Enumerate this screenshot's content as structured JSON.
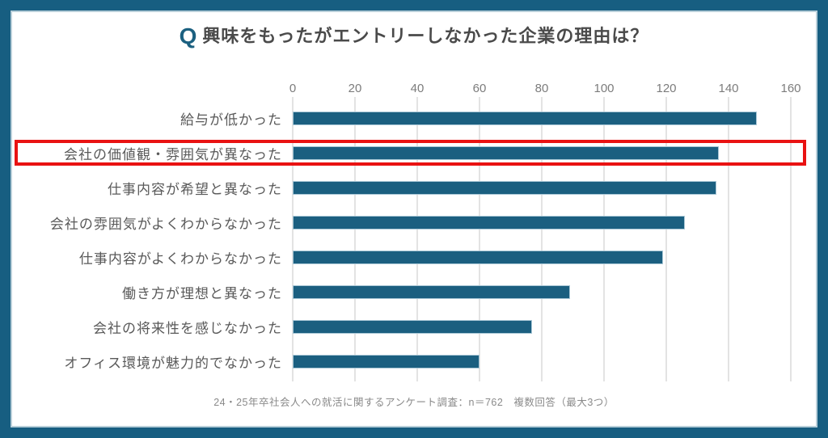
{
  "chart_data": {
    "type": "bar",
    "orientation": "horizontal",
    "title_prefix": "Q",
    "title": "興味をもったがエントリーしなかった企業の理由は？",
    "categories": [
      "給与が低かった",
      "会社の価値観・雰囲気が異なった",
      "仕事内容が希望と異なった",
      "会社の雰囲気がよくわからなかった",
      "仕事内容がよくわからなかった",
      "働き方が理想と異なった",
      "会社の将来性を感じなかった",
      "オフィス環境が魅力的でなかった"
    ],
    "values": [
      149,
      137,
      136,
      126,
      119,
      89,
      77,
      60
    ],
    "xticks": [
      0,
      20,
      40,
      60,
      80,
      100,
      120,
      140,
      160
    ],
    "xlim": [
      0,
      160
    ],
    "grid": true,
    "legend": false,
    "xlabel": "",
    "ylabel": "",
    "source_note": "24・25年卒社会人への就活に関するアンケート調査：n＝762　複数回答（最大3つ）",
    "highlight": {
      "row_index": 1,
      "category": "会社の価値観・雰囲気が異なった",
      "color": "#e91212"
    },
    "colors": {
      "frame": "#175e81",
      "frame_inner_line": "#b9cfda",
      "bar": "#1b5f80",
      "bar_border": "#a9c7d6",
      "accent_q": "#1b6080",
      "gridline": "#e3e3e3",
      "title_text": "#4a4a4a",
      "category_text": "#595959",
      "tick_text": "#7c7c7c",
      "note_text": "#8a8a8a"
    }
  }
}
